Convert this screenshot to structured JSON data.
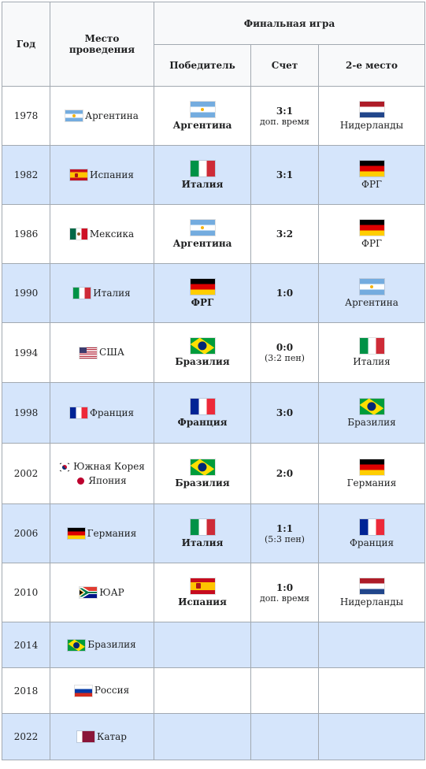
{
  "header": {
    "year": "Год",
    "venue": "Место проведения",
    "final": "Финальная игра",
    "winner": "Победитель",
    "score": "Счет",
    "second": "2-е место"
  },
  "rows": [
    {
      "year": "1978",
      "host": "Аргентина",
      "winner": "Аргентина",
      "score": "3:1",
      "note": "доп. время",
      "runner": "Нидерланды"
    },
    {
      "year": "1982",
      "host": "Испания",
      "winner": "Италия",
      "score": "3:1",
      "note": "",
      "runner": "ФРГ"
    },
    {
      "year": "1986",
      "host": "Мексика",
      "winner": "Аргентина",
      "score": "3:2",
      "note": "",
      "runner": "ФРГ"
    },
    {
      "year": "1990",
      "host": "Италия",
      "winner": "ФРГ",
      "score": "1:0",
      "note": "",
      "runner": "Аргентина"
    },
    {
      "year": "1994",
      "host": "США",
      "winner": "Бразилия",
      "score": "0:0",
      "note": "(3:2 пен)",
      "runner": "Италия"
    },
    {
      "year": "1998",
      "host": "Франция",
      "winner": "Франция",
      "score": "3:0",
      "note": "",
      "runner": "Бразилия"
    },
    {
      "year": "2002",
      "host": "Южная Корея",
      "host2": "Япония",
      "winner": "Бразилия",
      "score": "2:0",
      "note": "",
      "runner": "Германия"
    },
    {
      "year": "2006",
      "host": "Германия",
      "winner": "Италия",
      "score": "1:1",
      "note": "(5:3 пен)",
      "runner": "Франция"
    },
    {
      "year": "2010",
      "host": "ЮАР",
      "winner": "Испания",
      "score": "1:0",
      "note": "доп. время",
      "runner": "Нидерланды"
    },
    {
      "year": "2014",
      "host": "Бразилия",
      "winner": "",
      "score": "",
      "note": "",
      "runner": ""
    },
    {
      "year": "2018",
      "host": "Россия",
      "winner": "",
      "score": "",
      "note": "",
      "runner": ""
    },
    {
      "year": "2022",
      "host": "Катар",
      "winner": "",
      "score": "",
      "note": "",
      "runner": ""
    }
  ],
  "colors": {
    "blue_row": "#d5e5fb",
    "border": "#a2a9b1",
    "header_bg": "#f8f9fa"
  }
}
